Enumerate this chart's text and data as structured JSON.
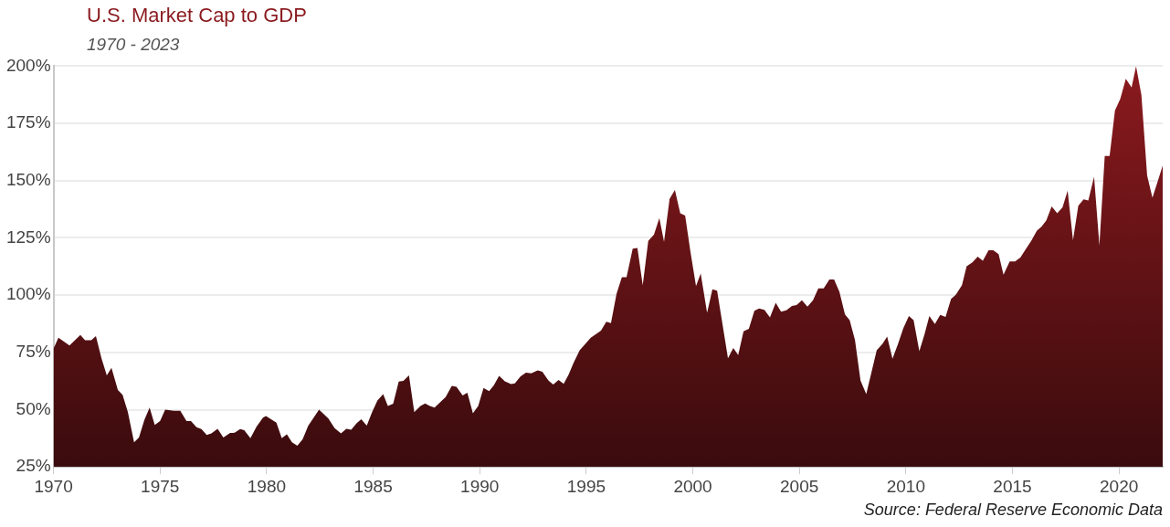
{
  "chart_data": {
    "type": "area",
    "title": "U.S. Market Cap to GDP",
    "subtitle": "1970 - 2023",
    "annotations": [
      "Source: Federal Reserve Economic Data"
    ],
    "x": [
      1970.0,
      1970.23,
      1970.75,
      1971.26,
      1971.48,
      1971.77,
      1971.99,
      1972.25,
      1972.5,
      1972.72,
      1973.02,
      1973.24,
      1973.49,
      1973.78,
      1974.01,
      1974.26,
      1974.51,
      1974.75,
      1975.0,
      1975.24,
      1975.65,
      1975.95,
      1976.24,
      1976.45,
      1976.71,
      1976.94,
      1977.19,
      1977.41,
      1977.7,
      1977.97,
      1978.29,
      1978.5,
      1978.76,
      1978.95,
      1979.24,
      1979.53,
      1979.83,
      1979.97,
      1980.46,
      1980.71,
      1980.95,
      1981.19,
      1981.44,
      1981.69,
      1981.95,
      1982.46,
      1982.9,
      1983.19,
      1983.49,
      1983.74,
      1983.97,
      1984.22,
      1984.44,
      1984.7,
      1984.95,
      1985.2,
      1985.47,
      1985.69,
      1985.94,
      1986.2,
      1986.42,
      1986.68,
      1986.93,
      1987.22,
      1987.44,
      1987.66,
      1987.88,
      1988.4,
      1988.69,
      1988.91,
      1989.2,
      1989.42,
      1989.68,
      1989.93,
      1990.18,
      1990.44,
      1990.66,
      1990.91,
      1991.18,
      1991.47,
      1991.65,
      1991.91,
      1992.17,
      1992.42,
      1992.72,
      1992.94,
      1993.23,
      1993.45,
      1993.7,
      1993.94,
      1994.18,
      1994.4,
      1994.69,
      1994.91,
      1995.21,
      1995.43,
      1995.69,
      1995.94,
      1996.16,
      1996.42,
      1996.67,
      1996.89,
      1997.18,
      1997.4,
      1997.65,
      1997.91,
      1998.18,
      1998.43,
      1998.65,
      1998.91,
      1999.16,
      1999.41,
      1999.64,
      1999.89,
      2000.15,
      2000.37,
      2000.67,
      2000.92,
      2001.14,
      2001.65,
      2001.9,
      2002.13,
      2002.38,
      2002.63,
      2002.89,
      2003.11,
      2003.36,
      2003.62,
      2003.89,
      2004.14,
      2004.39,
      2004.65,
      2004.87,
      2005.12,
      2005.38,
      2005.64,
      2005.89,
      2006.14,
      2006.41,
      2006.63,
      2006.88,
      2007.14,
      2007.36,
      2007.61,
      2007.87,
      2008.14,
      2008.39,
      2008.63,
      2008.9,
      2009.12,
      2009.37,
      2009.63,
      2009.88,
      2010.14,
      2010.36,
      2010.63,
      2010.87,
      2011.1,
      2011.36,
      2011.61,
      2011.86,
      2012.12,
      2012.34,
      2012.63,
      2012.85,
      2013.12,
      2013.37,
      2013.61,
      2013.88,
      2014.1,
      2014.35,
      2014.58,
      2014.87,
      2015.12,
      2015.37,
      2015.64,
      2015.88,
      2016.15,
      2016.37,
      2016.59,
      2016.84,
      2017.1,
      2017.35,
      2017.59,
      2017.84,
      2018.09,
      2018.34,
      2018.56,
      2018.83,
      2019.08,
      2019.33,
      2019.56,
      2019.81,
      2020.06,
      2020.32,
      2020.59,
      2020.8,
      2021.05,
      2021.32,
      2021.57,
      2022.05
    ],
    "values": [
      76.6,
      81.4,
      78,
      82.6,
      80.3,
      80.3,
      82.1,
      72.4,
      65,
      68.3,
      58.6,
      56.5,
      48.9,
      35.7,
      37.8,
      45.4,
      50.9,
      43.3,
      45,
      50,
      49.5,
      49.5,
      45,
      45,
      42.3,
      41.5,
      38.9,
      39.6,
      41.6,
      37.8,
      39.8,
      39.9,
      41.5,
      41,
      37.5,
      42.6,
      46.5,
      47.2,
      44.3,
      37.5,
      39.2,
      35.7,
      34.3,
      37,
      42.9,
      50,
      46.1,
      41.9,
      39.6,
      41.6,
      41.2,
      44,
      45.8,
      43,
      48.9,
      54,
      56.8,
      51.6,
      52.6,
      62.3,
      62.6,
      65,
      48.9,
      51.6,
      52.7,
      51.6,
      50.9,
      55.5,
      60.4,
      60,
      56.2,
      57.4,
      48.4,
      51.6,
      59.5,
      58.1,
      60.6,
      64.8,
      62.4,
      61.2,
      61.5,
      64.5,
      66.2,
      65.9,
      67.2,
      66.6,
      62.7,
      61,
      63,
      61.3,
      65.5,
      70.3,
      75.9,
      78.2,
      81.4,
      82.8,
      84.5,
      88.4,
      87.8,
      100.6,
      107.8,
      107.8,
      120.3,
      120.6,
      104.3,
      123.7,
      126.5,
      133.7,
      123.3,
      142,
      145.9,
      135.8,
      134.8,
      118.9,
      103.9,
      109.4,
      92.3,
      102.5,
      102,
      72.4,
      76.9,
      73.8,
      84.2,
      85.3,
      93.2,
      94.2,
      93.6,
      90.3,
      96.7,
      92.8,
      93.4,
      95.3,
      95.7,
      97.8,
      95,
      97.8,
      102.9,
      102.9,
      106.8,
      106.8,
      101.5,
      91.6,
      89.1,
      80.4,
      62.7,
      56.8,
      66.6,
      75.9,
      78.7,
      81.9,
      72.2,
      78.7,
      85.6,
      90.9,
      89.1,
      75.5,
      82.8,
      90.9,
      87.4,
      91.4,
      90.5,
      98.4,
      100.2,
      104.3,
      112.6,
      114.3,
      116.8,
      115,
      119.6,
      119.6,
      117.9,
      108.9,
      114.7,
      114.7,
      116.4,
      120.3,
      123.7,
      128.2,
      130,
      132.7,
      138.7,
      135.8,
      138.3,
      145.6,
      124,
      139,
      141.8,
      141.3,
      151.7,
      121.7,
      160.8,
      160.8,
      180.6,
      185.7,
      194.5,
      190.7,
      200,
      187.5,
      152.2,
      142.5,
      156.6
    ],
    "color": "#8a1a1e",
    "xlim": [
      1970,
      2022.05
    ],
    "xticks": [
      1970,
      1975,
      1980,
      1985,
      1990,
      1995,
      2000,
      2005,
      2010,
      2015,
      2020
    ],
    "ylim": [
      25,
      200
    ],
    "yticks": [
      {
        "value": 25,
        "label": "25%"
      },
      {
        "value": 50,
        "label": "50%"
      },
      {
        "value": 75,
        "label": "75%"
      },
      {
        "value": 100,
        "label": "100%"
      },
      {
        "value": 125,
        "label": "125%"
      },
      {
        "value": 150,
        "label": "150%"
      },
      {
        "value": 175,
        "label": "175%"
      },
      {
        "value": 200,
        "label": "200%"
      }
    ],
    "grid": "y"
  }
}
